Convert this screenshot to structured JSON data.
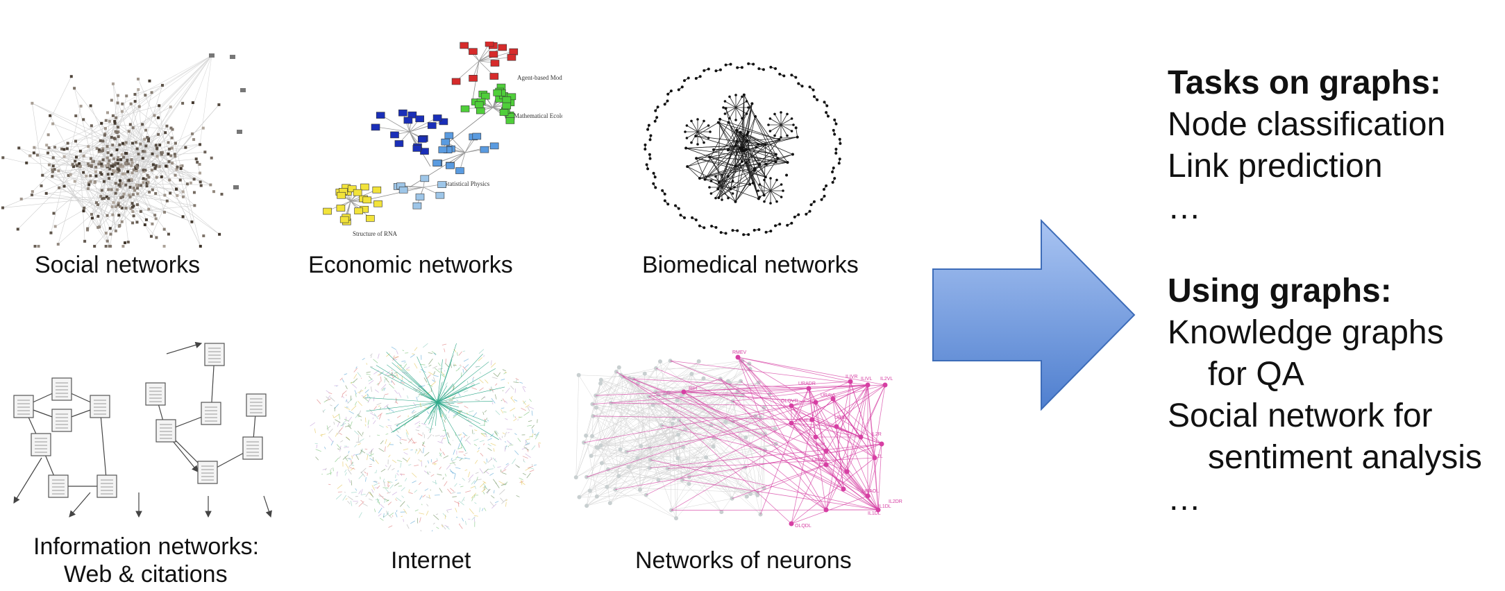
{
  "panels": {
    "social": "Social networks",
    "economic": "Economic networks",
    "economic_labels": [
      "Agent-based Models",
      "Mathematical Ecology",
      "Statistical Physics",
      "Structure of RNA"
    ],
    "biomedical": "Biomedical networks",
    "information_line1": "Information networks:",
    "information_line2": "Web & citations",
    "internet": "Internet",
    "neurons": "Networks of neurons",
    "neuron_labels": [
      "RMEV",
      "RIH",
      "URADR",
      "ILIVR",
      "ILIVL",
      "IL2VL",
      "OLQVR",
      "URAVL",
      "URBL",
      "RMEL",
      "IL2R",
      "IL2L",
      "RIPL",
      "URADL",
      "URAOL",
      "IL2DR",
      "OLQDL",
      "IL1DL",
      "IL1DL"
    ]
  },
  "tasks": {
    "heading": "Tasks on graphs:",
    "items": [
      "Node classification",
      "Link prediction",
      "…"
    ]
  },
  "using": {
    "heading": "Using graphs:",
    "item1": "Knowledge graphs",
    "item1b": "for QA",
    "item2": "Social network for",
    "item2b": "sentiment analysis",
    "item3": "…"
  },
  "colors": {
    "arrow_top": "#a9c4f2",
    "arrow_bottom": "#4f7fcf",
    "neuron_pink": "#d63fa3",
    "econ_red": "#d62b2b",
    "econ_green": "#4fcf3a",
    "econ_blue": "#1a2fb8",
    "econ_lightblue": "#5a9be0",
    "econ_yellow": "#f2e33a"
  }
}
